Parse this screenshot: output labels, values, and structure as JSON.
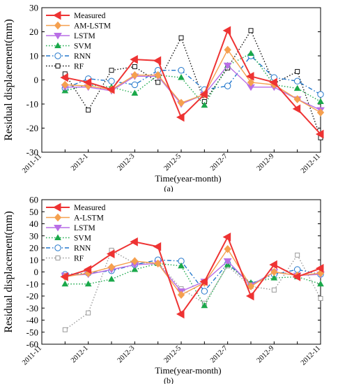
{
  "chart_data": [
    {
      "type": "line",
      "panel_label": "(a)",
      "xlabel": "Time(year-month)",
      "ylabel": "Residual displacement(mm)",
      "x": [
        "2011-11",
        "2011-12",
        "2012-1",
        "2012-2",
        "2012-3",
        "2012-4",
        "2012-5",
        "2012-6",
        "2012-7",
        "2012-8",
        "2012-9",
        "2012-10",
        "2012-11"
      ],
      "x_tick_labels": [
        "2011-11",
        "2012-1",
        "2012-3",
        "2012-5",
        "2012-7",
        "2012-9",
        "2012-11"
      ],
      "ylim": [
        -30,
        30
      ],
      "y_ticks": [
        -30,
        -20,
        -10,
        0,
        10,
        20,
        30
      ],
      "grid": false,
      "legend_position": "top-left",
      "series": [
        {
          "name": "Measured",
          "color": "#ee3333",
          "dash": "solid",
          "marker": "triangle-left",
          "values": [
            null,
            1,
            -1,
            -4,
            8.5,
            8,
            -15.5,
            -6,
            20.5,
            1.5,
            -1,
            -12,
            -22.5
          ]
        },
        {
          "name": "AM-LSTM",
          "color": "#f5a04f",
          "dash": "solid",
          "marker": "diamond",
          "values": [
            null,
            -2,
            -2.5,
            -4,
            2,
            2,
            -9.5,
            -6,
            12.5,
            -1,
            -2,
            -8,
            -13.5
          ]
        },
        {
          "name": "LSTM",
          "color": "#b96ee6",
          "dash": "solid",
          "marker": "triangle-down",
          "values": [
            null,
            -3,
            -3,
            -4.5,
            1.5,
            1.5,
            -10,
            -6,
            6,
            -3,
            -3,
            -8,
            -12.5
          ]
        },
        {
          "name": "SVM",
          "color": "#1aa84a",
          "dash": "dotted",
          "marker": "triangle-up",
          "values": [
            null,
            -4.5,
            -2,
            -3,
            -5.5,
            2,
            1,
            -10.5,
            6,
            11,
            -2,
            -3.5,
            -9
          ]
        },
        {
          "name": "RNN",
          "color": "#2277cc",
          "dash": "dashdot",
          "marker": "circle",
          "values": [
            null,
            -3.5,
            0.5,
            -0.5,
            -2,
            4,
            4,
            -4,
            -2.5,
            10,
            1,
            -0.5,
            -6
          ]
        },
        {
          "name": "RF",
          "color": "#111111",
          "dash": "dotted",
          "marker": "square",
          "values": [
            null,
            2.5,
            -12.5,
            4,
            5.5,
            -1,
            17.5,
            -9,
            5,
            20.5,
            -1.5,
            3.5,
            -24
          ]
        }
      ]
    },
    {
      "type": "line",
      "panel_label": "(b)",
      "xlabel": "Time(year-month)",
      "ylabel": "Residual displacement(mm)",
      "x": [
        "2011-11",
        "2011-12",
        "2012-1",
        "2012-2",
        "2012-3",
        "2012-4",
        "2012-5",
        "2012-6",
        "2012-7",
        "2012-8",
        "2012-9",
        "2012-10",
        "2012-11"
      ],
      "x_tick_labels": [
        "2011-11",
        "2012-1",
        "2012-3",
        "2012-5",
        "2012-7",
        "2012-9",
        "2012-11"
      ],
      "ylim": [
        -60,
        60
      ],
      "y_ticks": [
        -60,
        -50,
        -40,
        -30,
        -20,
        -10,
        0,
        10,
        20,
        30,
        40,
        50,
        60
      ],
      "grid": false,
      "legend_position": "top-left",
      "series": [
        {
          "name": "Measured",
          "color": "#ee3333",
          "dash": "solid",
          "marker": "triangle-left",
          "values": [
            null,
            -4,
            2,
            15,
            25,
            21,
            -35,
            -8,
            29,
            -20,
            6,
            -4,
            3
          ]
        },
        {
          "name": "A-LSTM",
          "color": "#f5a04f",
          "dash": "solid",
          "marker": "diamond",
          "values": [
            null,
            -4,
            -1,
            4,
            9,
            7,
            -19,
            -9,
            19,
            -12,
            0,
            -3,
            -1
          ]
        },
        {
          "name": "LSTM",
          "color": "#b96ee6",
          "dash": "solid",
          "marker": "triangle-down",
          "values": [
            null,
            -3,
            -2,
            2,
            6,
            7,
            -16,
            -8,
            9,
            -11,
            0,
            -3,
            -2
          ]
        },
        {
          "name": "SVM",
          "color": "#1aa84a",
          "dash": "dotted",
          "marker": "triangle-up",
          "values": [
            null,
            -10,
            -10,
            -6,
            2,
            7,
            5,
            -28,
            6,
            -9,
            -5,
            -4,
            -10
          ]
        },
        {
          "name": "RNN",
          "color": "#2277cc",
          "dash": "dashdot",
          "marker": "circle",
          "values": [
            null,
            -2,
            -1,
            1,
            6,
            10,
            9,
            -16,
            7,
            -10,
            -2,
            2,
            -2
          ]
        },
        {
          "name": "RF",
          "color": "#999999",
          "dash": "dotted",
          "marker": "square",
          "values": [
            null,
            -48,
            -34,
            18,
            7,
            8,
            -14,
            -26,
            5,
            -12,
            -15,
            14,
            -22
          ]
        }
      ]
    }
  ]
}
